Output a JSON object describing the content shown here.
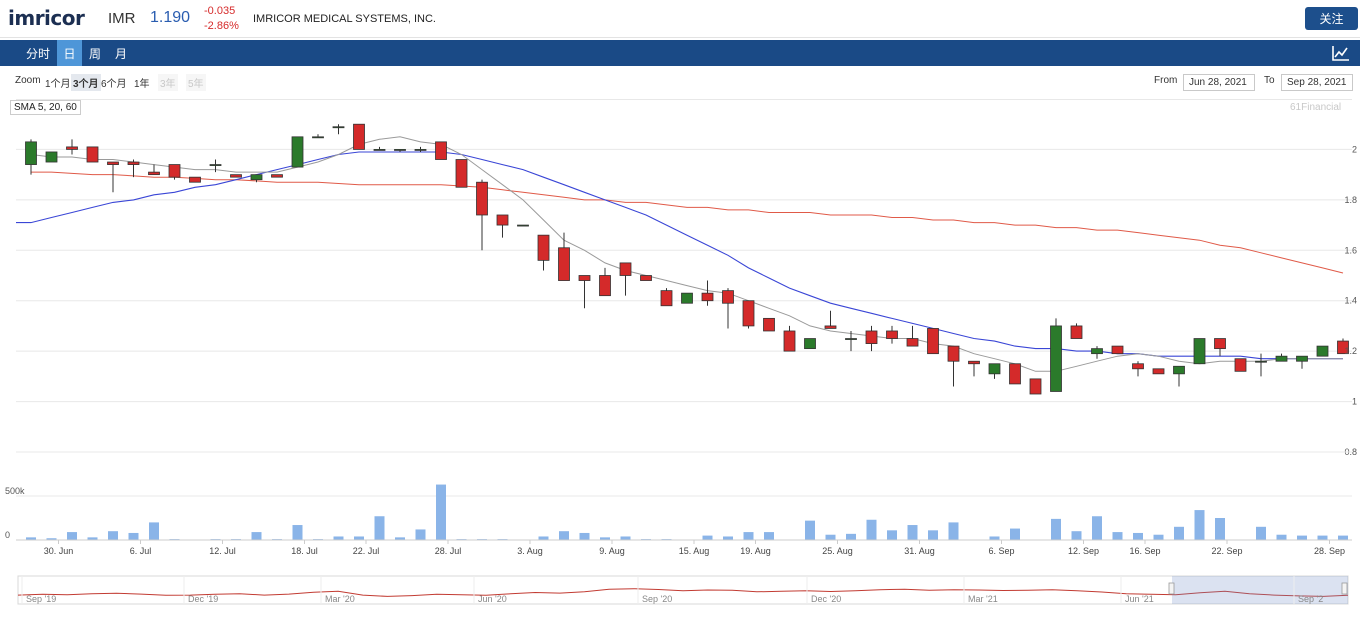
{
  "header": {
    "logo": "imricor",
    "ticker": "IMR",
    "price": "1.190",
    "change": "-0.035",
    "change_pct": "-2.86%",
    "company": "IMRICOR MEDICAL SYSTEMS, INC.",
    "follow_label": "关注"
  },
  "nav": {
    "tabs": [
      {
        "label": "分时"
      },
      {
        "label": "日"
      },
      {
        "label": "周"
      },
      {
        "label": "月"
      }
    ],
    "active": "日",
    "chart_icon": "line-chart-icon"
  },
  "zoom": {
    "label": "Zoom",
    "buttons": [
      {
        "label": "1个月"
      },
      {
        "label": "3个月"
      },
      {
        "label": "6个月"
      },
      {
        "label": "1年"
      },
      {
        "label": "3年"
      },
      {
        "label": "5年"
      }
    ],
    "active": "3个月",
    "from_label": "From",
    "from_value": "Jun 28, 2021",
    "to_label": "To",
    "to_value": "Sep 28, 2021"
  },
  "indicator_label": "SMA 5, 20, 60",
  "watermark": "61Financial",
  "colors": {
    "up": "#2b7a2b",
    "down": "#d42a2a",
    "sma5": "#9a9a9a",
    "sma20": "#3a46d6",
    "sma60": "#e05a48",
    "volume": "#8ab4e8",
    "nav_bg": "#1a4a86",
    "nav_active": "#4e96d8"
  },
  "chart_data": {
    "type": "candlestick",
    "price_axis": {
      "ticks": [
        "0.8",
        "1",
        "1.2",
        "1.4",
        "1.6",
        "1.8",
        "2"
      ],
      "range": [
        0.8,
        2.2
      ]
    },
    "volume_axis": {
      "ticks": [
        "0",
        "500k"
      ],
      "range": [
        0,
        1000000
      ]
    },
    "x_ticks": [
      "30. Jun",
      "6. Jul",
      "12. Jul",
      "18. Jul",
      "22. Jul",
      "28. Jul",
      "3. Aug",
      "9. Aug",
      "15. Aug",
      "19. Aug",
      "25. Aug",
      "31. Aug",
      "6. Sep",
      "12. Sep",
      "16. Sep",
      "22. Sep",
      "28. Sep"
    ],
    "candles": [
      {
        "o": 1.94,
        "c": 2.03,
        "h": 2.04,
        "l": 1.9,
        "v": 30000
      },
      {
        "o": 1.95,
        "c": 1.99,
        "h": 1.99,
        "l": 1.95,
        "v": 20000
      },
      {
        "o": 2.01,
        "c": 2.0,
        "h": 2.04,
        "l": 1.98,
        "v": 90000
      },
      {
        "o": 2.01,
        "c": 1.95,
        "h": 2.01,
        "l": 1.95,
        "v": 30000
      },
      {
        "o": 1.95,
        "c": 1.94,
        "h": 1.95,
        "l": 1.83,
        "v": 100000
      },
      {
        "o": 1.95,
        "c": 1.94,
        "h": 1.96,
        "l": 1.89,
        "v": 80000
      },
      {
        "o": 1.91,
        "c": 1.9,
        "h": 1.94,
        "l": 1.9,
        "v": 200000
      },
      {
        "o": 1.94,
        "c": 1.89,
        "h": 1.94,
        "l": 1.88,
        "v": 10000
      },
      {
        "o": 1.89,
        "c": 1.87,
        "h": 1.89,
        "l": 1.87,
        "v": 0
      },
      {
        "o": 1.94,
        "c": 1.94,
        "h": 1.96,
        "l": 1.91,
        "v": 10000
      },
      {
        "o": 1.9,
        "c": 1.89,
        "h": 1.9,
        "l": 1.89,
        "v": 10000
      },
      {
        "o": 1.88,
        "c": 1.9,
        "h": 1.9,
        "l": 1.87,
        "v": 90000
      },
      {
        "o": 1.9,
        "c": 1.89,
        "h": 1.9,
        "l": 1.89,
        "v": 10000
      },
      {
        "o": 1.93,
        "c": 2.05,
        "h": 2.05,
        "l": 1.93,
        "v": 170000
      },
      {
        "o": 2.05,
        "c": 2.05,
        "h": 2.06,
        "l": 2.05,
        "v": 10000
      },
      {
        "o": 2.09,
        "c": 2.09,
        "h": 2.1,
        "l": 2.06,
        "v": 40000
      },
      {
        "o": 2.1,
        "c": 2.0,
        "h": 2.1,
        "l": 2.0,
        "v": 40000
      },
      {
        "o": 2.0,
        "c": 2.0,
        "h": 2.01,
        "l": 2.0,
        "v": 270000
      },
      {
        "o": 2.0,
        "c": 2.0,
        "h": 2.0,
        "l": 1.99,
        "v": 30000
      },
      {
        "o": 2.0,
        "c": 2.0,
        "h": 2.01,
        "l": 1.99,
        "v": 120000
      },
      {
        "o": 2.03,
        "c": 1.96,
        "h": 2.03,
        "l": 1.96,
        "v": 630000
      },
      {
        "o": 1.96,
        "c": 1.85,
        "h": 1.96,
        "l": 1.85,
        "v": 10000
      },
      {
        "o": 1.87,
        "c": 1.74,
        "h": 1.88,
        "l": 1.6,
        "v": 10000
      },
      {
        "o": 1.74,
        "c": 1.7,
        "h": 1.74,
        "l": 1.65,
        "v": 10000
      },
      {
        "o": 1.7,
        "c": 1.7,
        "h": 1.7,
        "l": 1.7,
        "v": 0
      },
      {
        "o": 1.66,
        "c": 1.56,
        "h": 1.66,
        "l": 1.52,
        "v": 40000
      },
      {
        "o": 1.61,
        "c": 1.48,
        "h": 1.67,
        "l": 1.48,
        "v": 100000
      },
      {
        "o": 1.5,
        "c": 1.48,
        "h": 1.5,
        "l": 1.37,
        "v": 80000
      },
      {
        "o": 1.5,
        "c": 1.42,
        "h": 1.53,
        "l": 1.42,
        "v": 30000
      },
      {
        "o": 1.55,
        "c": 1.5,
        "h": 1.55,
        "l": 1.42,
        "v": 40000
      },
      {
        "o": 1.5,
        "c": 1.48,
        "h": 1.5,
        "l": 1.48,
        "v": 10000
      },
      {
        "o": 1.44,
        "c": 1.38,
        "h": 1.45,
        "l": 1.38,
        "v": 10000
      },
      {
        "o": 1.39,
        "c": 1.43,
        "h": 1.43,
        "l": 1.39,
        "v": 0
      },
      {
        "o": 1.43,
        "c": 1.4,
        "h": 1.48,
        "l": 1.38,
        "v": 50000
      },
      {
        "o": 1.44,
        "c": 1.39,
        "h": 1.45,
        "l": 1.29,
        "v": 40000
      },
      {
        "o": 1.4,
        "c": 1.3,
        "h": 1.4,
        "l": 1.29,
        "v": 90000
      },
      {
        "o": 1.33,
        "c": 1.28,
        "h": 1.33,
        "l": 1.28,
        "v": 90000
      },
      {
        "o": 1.28,
        "c": 1.2,
        "h": 1.3,
        "l": 1.2,
        "v": 0
      },
      {
        "o": 1.21,
        "c": 1.25,
        "h": 1.25,
        "l": 1.21,
        "v": 220000
      },
      {
        "o": 1.3,
        "c": 1.29,
        "h": 1.36,
        "l": 1.29,
        "v": 60000
      },
      {
        "o": 1.25,
        "c": 1.25,
        "h": 1.28,
        "l": 1.2,
        "v": 70000
      },
      {
        "o": 1.28,
        "c": 1.23,
        "h": 1.3,
        "l": 1.2,
        "v": 230000
      },
      {
        "o": 1.28,
        "c": 1.25,
        "h": 1.3,
        "l": 1.23,
        "v": 110000
      },
      {
        "o": 1.25,
        "c": 1.22,
        "h": 1.3,
        "l": 1.22,
        "v": 170000
      },
      {
        "o": 1.29,
        "c": 1.19,
        "h": 1.29,
        "l": 1.19,
        "v": 110000
      },
      {
        "o": 1.22,
        "c": 1.16,
        "h": 1.22,
        "l": 1.06,
        "v": 200000
      },
      {
        "o": 1.16,
        "c": 1.15,
        "h": 1.16,
        "l": 1.1,
        "v": 0
      },
      {
        "o": 1.11,
        "c": 1.15,
        "h": 1.15,
        "l": 1.09,
        "v": 40000
      },
      {
        "o": 1.15,
        "c": 1.07,
        "h": 1.15,
        "l": 1.07,
        "v": 130000
      },
      {
        "o": 1.09,
        "c": 1.03,
        "h": 1.09,
        "l": 1.03,
        "v": 0
      },
      {
        "o": 1.04,
        "c": 1.3,
        "h": 1.33,
        "l": 1.04,
        "v": 240000
      },
      {
        "o": 1.3,
        "c": 1.25,
        "h": 1.31,
        "l": 1.25,
        "v": 100000
      },
      {
        "o": 1.19,
        "c": 1.21,
        "h": 1.22,
        "l": 1.17,
        "v": 270000
      },
      {
        "o": 1.22,
        "c": 1.19,
        "h": 1.22,
        "l": 1.19,
        "v": 90000
      },
      {
        "o": 1.15,
        "c": 1.13,
        "h": 1.16,
        "l": 1.1,
        "v": 80000
      },
      {
        "o": 1.13,
        "c": 1.11,
        "h": 1.13,
        "l": 1.11,
        "v": 60000
      },
      {
        "o": 1.11,
        "c": 1.14,
        "h": 1.14,
        "l": 1.06,
        "v": 150000
      },
      {
        "o": 1.15,
        "c": 1.25,
        "h": 1.25,
        "l": 1.15,
        "v": 340000
      },
      {
        "o": 1.25,
        "c": 1.21,
        "h": 1.25,
        "l": 1.18,
        "v": 250000
      },
      {
        "o": 1.17,
        "c": 1.12,
        "h": 1.17,
        "l": 1.12,
        "v": 0
      },
      {
        "o": 1.16,
        "c": 1.16,
        "h": 1.19,
        "l": 1.1,
        "v": 150000
      },
      {
        "o": 1.16,
        "c": 1.18,
        "h": 1.19,
        "l": 1.16,
        "v": 60000
      },
      {
        "o": 1.16,
        "c": 1.18,
        "h": 1.18,
        "l": 1.13,
        "v": 50000
      },
      {
        "o": 1.18,
        "c": 1.22,
        "h": 1.22,
        "l": 1.18,
        "v": 50000
      },
      {
        "o": 1.24,
        "c": 1.19,
        "h": 1.25,
        "l": 1.19,
        "v": 50000
      }
    ],
    "sma5": [
      1.98,
      1.97,
      1.97,
      1.96,
      1.96,
      1.95,
      1.94,
      1.93,
      1.92,
      1.92,
      1.91,
      1.91,
      1.91,
      1.93,
      1.95,
      1.98,
      2.02,
      2.04,
      2.05,
      2.03,
      2.02,
      1.98,
      1.92,
      1.86,
      1.8,
      1.72,
      1.64,
      1.6,
      1.55,
      1.52,
      1.5,
      1.48,
      1.46,
      1.44,
      1.43,
      1.4,
      1.37,
      1.34,
      1.3,
      1.28,
      1.27,
      1.26,
      1.25,
      1.25,
      1.23,
      1.22,
      1.19,
      1.17,
      1.15,
      1.12,
      1.12,
      1.14,
      1.16,
      1.18,
      1.19,
      1.18,
      1.16,
      1.15,
      1.16,
      1.16,
      1.16,
      1.17,
      1.17,
      1.17,
      1.17
    ],
    "sma20": [
      1.71,
      1.73,
      1.75,
      1.77,
      1.79,
      1.8,
      1.82,
      1.83,
      1.85,
      1.86,
      1.88,
      1.9,
      1.92,
      1.94,
      1.96,
      1.98,
      1.99,
      1.99,
      1.99,
      1.99,
      1.99,
      1.98,
      1.96,
      1.94,
      1.92,
      1.89,
      1.86,
      1.83,
      1.8,
      1.77,
      1.74,
      1.7,
      1.66,
      1.62,
      1.58,
      1.53,
      1.49,
      1.45,
      1.42,
      1.39,
      1.37,
      1.35,
      1.33,
      1.31,
      1.29,
      1.27,
      1.25,
      1.24,
      1.22,
      1.21,
      1.21,
      1.2,
      1.2,
      1.19,
      1.19,
      1.18,
      1.18,
      1.18,
      1.18,
      1.18,
      1.17,
      1.17,
      1.17,
      1.17,
      1.17
    ],
    "sma60": [
      1.91,
      1.91,
      1.905,
      1.9,
      1.9,
      1.895,
      1.89,
      1.89,
      1.885,
      1.88,
      1.88,
      1.875,
      1.87,
      1.87,
      1.87,
      1.865,
      1.86,
      1.86,
      1.86,
      1.86,
      1.86,
      1.855,
      1.85,
      1.84,
      1.83,
      1.82,
      1.81,
      1.8,
      1.8,
      1.79,
      1.79,
      1.78,
      1.77,
      1.77,
      1.76,
      1.76,
      1.75,
      1.75,
      1.75,
      1.74,
      1.74,
      1.74,
      1.73,
      1.73,
      1.72,
      1.72,
      1.71,
      1.71,
      1.7,
      1.7,
      1.69,
      1.69,
      1.68,
      1.68,
      1.67,
      1.66,
      1.65,
      1.64,
      1.62,
      1.61,
      1.59,
      1.57,
      1.55,
      1.53,
      1.51
    ],
    "navigator": {
      "x_ticks": [
        "Sep '19",
        "Dec '19",
        "Mar '20",
        "Jun '20",
        "Sep '20",
        "Dec '20",
        "Mar '21",
        "Jun '21",
        "Sep '2"
      ],
      "values": [
        1.05,
        1.08,
        1.06,
        1.1,
        1.12,
        1.09,
        1.04,
        1.05,
        1.08,
        1.1,
        1.05,
        1.09,
        1.16,
        1.2,
        1.05,
        1.0,
        1.03,
        1.08,
        1.06,
        1.04,
        1.1,
        1.15,
        1.13,
        1.18,
        1.28,
        1.3,
        1.27,
        1.22,
        1.25,
        1.24,
        1.18,
        1.2,
        1.22,
        1.19,
        1.22,
        1.26,
        1.28,
        1.24,
        1.26,
        1.25,
        1.23,
        1.24,
        1.26,
        1.22,
        1.17,
        1.1,
        1.08,
        1.06,
        1.14,
        1.2,
        1.1,
        1.05,
        1.02,
        1.0,
        1.04
      ],
      "selected_range": [
        "Jun 28, 2021",
        "Sep 28, 2021"
      ]
    }
  }
}
